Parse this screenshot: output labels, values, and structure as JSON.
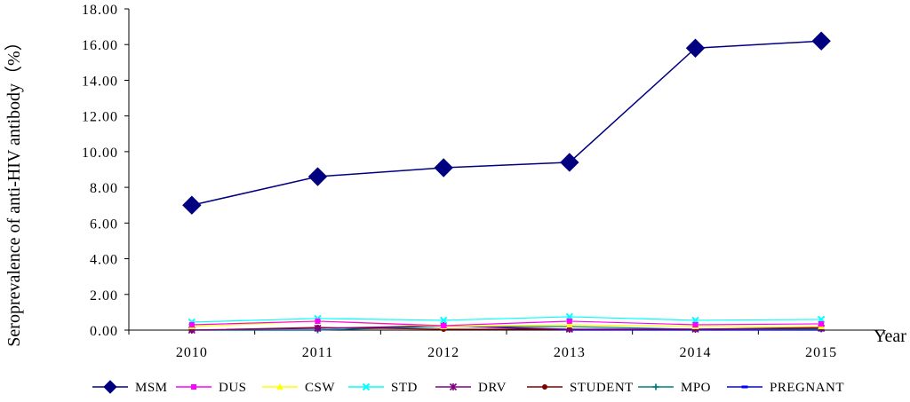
{
  "chart_data": {
    "type": "line",
    "title": "",
    "xlabel": "Year",
    "ylabel": "Seroprevalence of anti-HIV antibody（%）",
    "ylim": [
      0,
      18
    ],
    "yticks": [
      "0.00",
      "2.00",
      "4.00",
      "6.00",
      "8.00",
      "10.00",
      "12.00",
      "14.00",
      "16.00",
      "18.00"
    ],
    "categories": [
      "2010",
      "2011",
      "2012",
      "2013",
      "2014",
      "2015"
    ],
    "grid": false,
    "legend_position": "bottom",
    "series": [
      {
        "name": "MSM",
        "color": "#000080",
        "marker": "diamond",
        "values": [
          7.0,
          8.6,
          9.1,
          9.4,
          15.8,
          16.2
        ]
      },
      {
        "name": "DUS",
        "color": "#ff00ff",
        "marker": "square",
        "values": [
          0.3,
          0.5,
          0.25,
          0.5,
          0.3,
          0.35
        ]
      },
      {
        "name": "CSW",
        "color": "#ffff00",
        "marker": "triangle",
        "values": [
          0.2,
          0.5,
          0.2,
          0.3,
          0.2,
          0.2
        ]
      },
      {
        "name": "STD",
        "color": "#00ffff",
        "marker": "x",
        "values": [
          0.45,
          0.65,
          0.55,
          0.75,
          0.55,
          0.6
        ]
      },
      {
        "name": "DRV",
        "color": "#800080",
        "marker": "star",
        "values": [
          0.0,
          0.1,
          0.25,
          0.05,
          0.05,
          0.1
        ]
      },
      {
        "name": "STUDENT",
        "color": "#800000",
        "marker": "circle",
        "values": [
          0.0,
          0.15,
          0.05,
          0.05,
          0.05,
          0.15
        ]
      },
      {
        "name": "MPO",
        "color": "#008080",
        "marker": "plus",
        "values": [
          0.0,
          0.0,
          0.2,
          0.2,
          0.05,
          0.05
        ]
      },
      {
        "name": "PREGNANT",
        "color": "#0000ff",
        "marker": "dash",
        "values": [
          0.0,
          0.0,
          0.25,
          0.0,
          0.0,
          0.0
        ]
      }
    ]
  }
}
